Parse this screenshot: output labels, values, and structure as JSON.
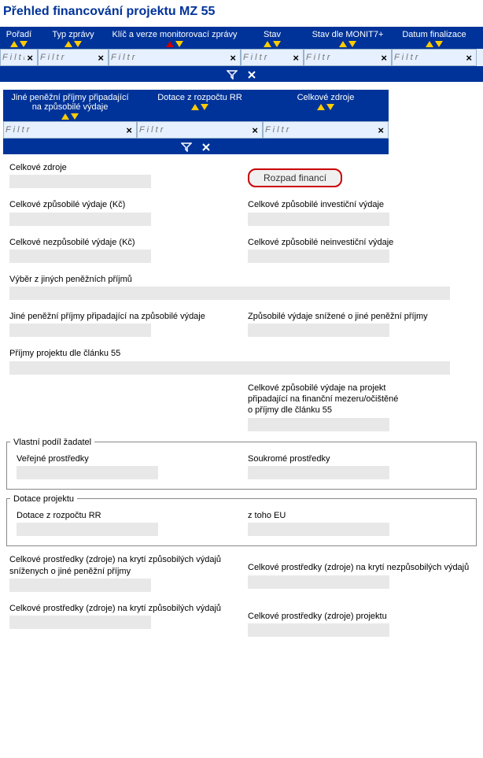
{
  "title": "Přehled financování projektu MZ 55",
  "grid1": {
    "columns": [
      {
        "label": "Pořadí",
        "width": "c1"
      },
      {
        "label": "Typ zprávy",
        "width": "c2"
      },
      {
        "label": "Klíč a verze monitorovací zprávy",
        "width": "c3",
        "red": true
      },
      {
        "label": "Stav",
        "width": "c4"
      },
      {
        "label": "Stav dle MONIT7+",
        "width": "c5"
      },
      {
        "label": "Datum finalizace",
        "width": "c6"
      }
    ],
    "filter_placeholder": "F i l t r"
  },
  "grid2": {
    "columns": [
      {
        "label": "Jiné peněžní příjmy připadající\\nna způsobilé výdaje",
        "width": "g2c1"
      },
      {
        "label": "Dotace z rozpočtu RR",
        "width": "g2c2"
      },
      {
        "label": "Celkové zdroje",
        "width": "g2c3"
      }
    ],
    "filter_placeholder": "F i l t r"
  },
  "btn_rozpad": "Rozpad financí",
  "fields": {
    "celkove_zdroje": "Celkové zdroje",
    "celkove_zpusobile_kc": "Celkové způsobilé výdaje (Kč)",
    "celkove_zpusobile_invest": "Celkové způsobilé investiční výdaje",
    "celkove_nezpusobile_kc": "Celkové nezpůsobilé výdaje (Kč)",
    "celkove_zpusobile_neinvest": "Celkové způsobilé neinvestiční výdaje",
    "vyber_jinych": "Výběr z jiných peněžních příjmů",
    "jine_prijmy_pripadajici": "Jiné peněžní příjmy připadající na způsobilé výdaje",
    "zpusobile_snizene": "Způsobilé výdaje snížené o jiné peněžní příjmy",
    "prijmy_cl55": "Příjmy projektu dle článku 55",
    "celkove_mezeru": "Celkové způsobilé výdaje na projekt připadající na finanční mezeru/očištěné o příjmy dle článku 55",
    "fs_vlastni": "Vlastní podíl žadatel",
    "verejne": "Veřejné prostředky",
    "soukrome": "Soukromé prostředky",
    "fs_dotace": "Dotace projektu",
    "dotace_rr": "Dotace z rozpočtu RR",
    "z_toho_eu": "z toho EU",
    "celk_kryti_sniz": "Celkové prostředky (zdroje) na krytí způsobilých výdajů sníženych o jiné peněžní příjmy",
    "celk_kryti_nezp": "Celkové prostředky (zdroje) na krytí nezpůsobilých výdajů",
    "celk_kryti_zp": "Celkové prostředky (zdroje) na krytí způsobilých výdajů",
    "celk_projektu": "Celkové prostředky (zdroje) projektu"
  }
}
